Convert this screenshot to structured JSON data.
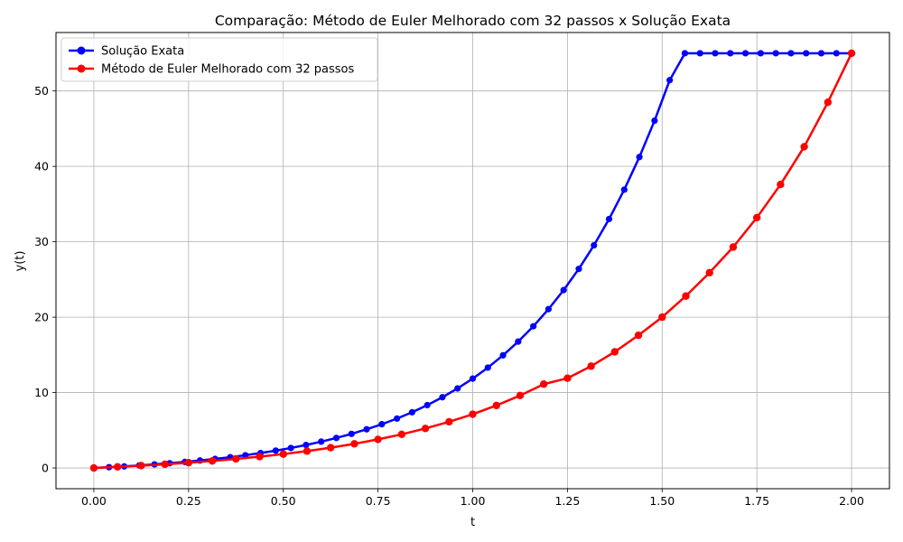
{
  "chart_data": {
    "type": "line",
    "title": "Comparação: Método de Euler Melhorado com 32 passos x Solução Exata",
    "xlabel": "t",
    "ylabel": "y(t)",
    "xlim": [
      -0.1,
      2.1
    ],
    "ylim": [
      -2.75,
      57.75
    ],
    "xticks": [
      "0.00",
      "0.25",
      "0.50",
      "0.75",
      "1.00",
      "1.25",
      "1.50",
      "1.75",
      "2.00"
    ],
    "yticks": [
      "0",
      "10",
      "20",
      "30",
      "40",
      "50"
    ],
    "grid": true,
    "legend_position": "top-left",
    "series": [
      {
        "name": "Solução Exata",
        "color": "#0000ff",
        "marker": "circle",
        "x": [
          0.0,
          0.04,
          0.08,
          0.12,
          0.16,
          0.2,
          0.24,
          0.28,
          0.32,
          0.36,
          0.4,
          0.44,
          0.48,
          0.52,
          0.56,
          0.6,
          0.64,
          0.68,
          0.72,
          0.76,
          0.8,
          0.84,
          0.88,
          0.92,
          0.96,
          1.0,
          1.04,
          1.08,
          1.12,
          1.16,
          1.2,
          1.24,
          1.28,
          1.32,
          1.36,
          1.4,
          1.44,
          1.48,
          1.52,
          1.56,
          1.6,
          1.64,
          1.68,
          1.72,
          1.76,
          1.8,
          1.84,
          1.88,
          1.92,
          1.96,
          2.0
        ],
        "y": [
          0.0,
          0.1,
          0.21,
          0.34,
          0.48,
          0.63,
          0.8,
          0.99,
          1.2,
          1.43,
          1.69,
          1.98,
          2.3,
          2.65,
          3.05,
          3.49,
          3.98,
          4.52,
          5.13,
          5.8,
          6.55,
          7.39,
          8.33,
          9.38,
          10.55,
          11.85,
          13.31,
          14.94,
          16.76,
          18.79,
          21.06,
          23.59,
          26.4,
          29.53,
          33.02,
          36.91,
          41.24,
          46.06,
          51.43,
          55.0,
          55.0,
          55.0,
          55.0,
          55.0,
          55.0,
          55.0,
          55.0,
          55.0,
          55.0,
          55.0,
          55.0
        ]
      },
      {
        "name": "Método de Euler Melhorado com 32 passos",
        "color": "#ff0000",
        "marker": "circle",
        "x": [
          0.0,
          0.0625,
          0.125,
          0.1875,
          0.25,
          0.3125,
          0.375,
          0.4375,
          0.5,
          0.5625,
          0.625,
          0.6875,
          0.75,
          0.8125,
          0.875,
          0.9375,
          1.0,
          1.0625,
          1.125,
          1.1875,
          1.25,
          1.3125,
          1.375,
          1.4375,
          1.5,
          1.5625,
          1.625,
          1.6875,
          1.75,
          1.8125,
          1.875,
          1.9375,
          2.0
        ],
        "y": [
          0.0,
          0.15,
          0.31,
          0.49,
          0.7,
          0.93,
          1.2,
          1.5,
          1.84,
          2.24,
          2.69,
          3.2,
          3.79,
          4.46,
          5.24,
          6.12,
          7.13,
          8.29,
          9.61,
          11.12,
          11.9,
          13.5,
          15.4,
          17.6,
          20.0,
          22.8,
          25.9,
          29.3,
          33.2,
          37.6,
          42.6,
          48.5,
          55.0
        ]
      }
    ]
  }
}
